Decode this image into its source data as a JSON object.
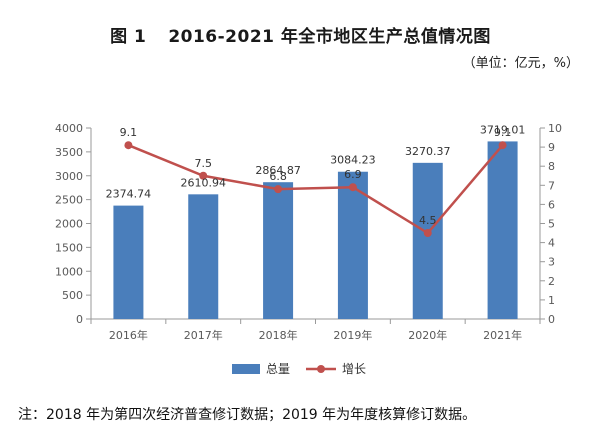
{
  "title": {
    "figure_no": "图 1",
    "text": "2016-2021 年全市地区生产总值情况图"
  },
  "unit": "（单位：亿元，%）",
  "note": "注：2018 年为第四次经济普查修订数据；2019 年为年度核算修订数据。",
  "colors": {
    "bar": "#4a7ebb",
    "line": "#c0504d",
    "axis": "#9a9a9a",
    "tick_text": "#595959"
  },
  "chart_data": {
    "type": "bar",
    "categories": [
      "2016年",
      "2017年",
      "2018年",
      "2019年",
      "2020年",
      "2021年"
    ],
    "series": [
      {
        "name": "总量",
        "type": "bar",
        "axis": "left",
        "values": [
          2374.74,
          2610.94,
          2864.87,
          3084.23,
          3270.37,
          3719.01
        ],
        "labels": [
          "2374.74",
          "2610.94",
          "2864.87",
          "3084.23",
          "3270.37",
          "3719.01"
        ]
      },
      {
        "name": "增长",
        "type": "line",
        "axis": "right",
        "values": [
          9.1,
          7.5,
          6.8,
          6.9,
          4.5,
          9.1
        ],
        "labels": [
          "9.1",
          "7.5",
          "6.8",
          "6.9",
          "4.5",
          "9.1"
        ]
      }
    ],
    "y_left": {
      "min": 0,
      "max": 4000,
      "ticks": [
        0,
        500,
        1000,
        1500,
        2000,
        2500,
        3000,
        3500,
        4000
      ]
    },
    "y_right": {
      "min": 0,
      "max": 10,
      "ticks": [
        0,
        1,
        2,
        3,
        4,
        5,
        6,
        7,
        8,
        9,
        10
      ]
    },
    "grid": false,
    "legend": "bottom-center"
  }
}
